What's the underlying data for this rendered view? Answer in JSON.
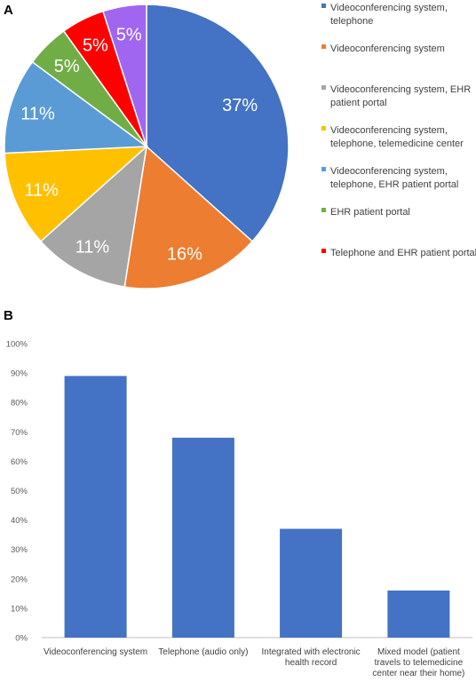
{
  "chart_data": [
    {
      "panel": "A",
      "type": "pie",
      "slices": [
        {
          "label": "Videoconferencing system, telephone",
          "value": 37,
          "value_label": "37%",
          "color": "#4472C4"
        },
        {
          "label": "Videoconferencing system",
          "value": 16,
          "value_label": "16%",
          "color": "#ED7D31"
        },
        {
          "label": "Videoconferencing system, EHR patient portal",
          "value": 11,
          "value_label": "11%",
          "color": "#A5A5A5"
        },
        {
          "label": "Videoconferencing system, telephone, telemedicine center",
          "value": 11,
          "value_label": "11%",
          "color": "#FFC000"
        },
        {
          "label": "Videoconferencing system, telephone,  EHR patient portal",
          "value": 11,
          "value_label": "11%",
          "color": "#5B9BD5"
        },
        {
          "label": "EHR patient portal",
          "value": 5,
          "value_label": "5%",
          "color": "#70AD47"
        },
        {
          "label": "Telephone and EHR patient portal",
          "value": 5,
          "value_label": "5%",
          "color": "#FF0000"
        },
        {
          "label": "",
          "value": 5,
          "value_label": "5%",
          "color": "#A066F0"
        }
      ],
      "legend": [
        [
          "Videoconferencing system,",
          "telephone"
        ],
        [
          "Videoconferencing system"
        ],
        [
          "Videoconferencing system, EHR",
          "patient portal"
        ],
        [
          "Videoconferencing system,",
          "telephone, telemedicine center"
        ],
        [
          "Videoconferencing system,",
          "telephone,  EHR patient portal"
        ],
        [
          "EHR patient portal"
        ],
        [
          "Telephone and EHR patient portal"
        ]
      ],
      "legend_placement": "right"
    },
    {
      "panel": "B",
      "type": "bar",
      "categories": [
        [
          "Videoconferencing system"
        ],
        [
          "Telephone (audio only)"
        ],
        [
          "Integrated with electronic",
          "health record"
        ],
        [
          "Mixed model (patient",
          "travels to telemedicine",
          "center near their home)"
        ]
      ],
      "values": [
        0.89,
        0.68,
        0.37,
        0.16
      ],
      "ylim": [
        0,
        1
      ],
      "yticks": [
        "0%",
        "10%",
        "20%",
        "30%",
        "40%",
        "50%",
        "60%",
        "70%",
        "80%",
        "90%",
        "100%"
      ],
      "bar_color": "#4472C4",
      "grid": false
    }
  ]
}
